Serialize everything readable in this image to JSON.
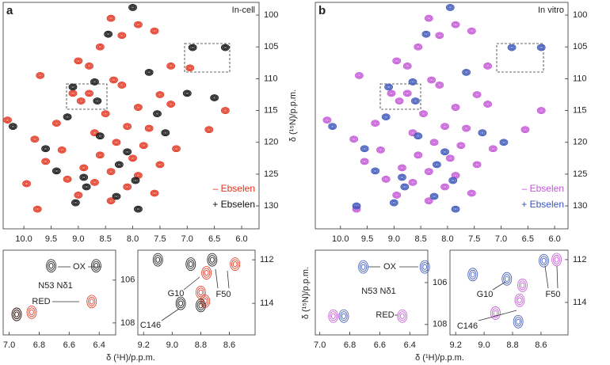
{
  "chart_data": [
    {
      "type": "scatter",
      "panel": "a",
      "title": "In-cell",
      "legend": "lower right",
      "xlim": [
        10.38,
        5.68
      ],
      "ylim": [
        98.0,
        133.6
      ],
      "xticks": [
        {
          "value": 10,
          "label": "10.0"
        },
        9.5,
        {
          "value": 9,
          "label": "9.0"
        },
        8.5,
        {
          "value": 8,
          "label": "8.0"
        },
        7.5,
        {
          "value": 7,
          "label": "7.0"
        },
        6.5,
        {
          "value": 6,
          "label": "6.0"
        }
      ],
      "yticks": [
        100,
        105,
        110,
        115,
        120,
        125,
        130
      ],
      "series": [
        {
          "name": "– Ebselen",
          "color": "#e2341f",
          "x": [
            8.4,
            7.9,
            7.6,
            8.2,
            8.6,
            9.0,
            8.8,
            7.3,
            9.7,
            8.35,
            8.2,
            6.95,
            9.1,
            8.8,
            8.95,
            7.5,
            7.3,
            7.9,
            8.5,
            9.4,
            10.3,
            8.1,
            7.7,
            8.7,
            9.8,
            8.3,
            7.8,
            7.2,
            9.3,
            8.6,
            8.0,
            7.5,
            9.6,
            8.9,
            8.4,
            7.9,
            9.2,
            8.7,
            8.1,
            7.6,
            9.0,
            8.4,
            9.75,
            6.3,
            6.6,
            9.95
          ],
          "y": [
            100.5,
            101.5,
            102.5,
            103.2,
            105.0,
            107.2,
            108.0,
            108.0,
            109.5,
            110.2,
            111.0,
            108.3,
            112.3,
            112.3,
            113.5,
            112.5,
            114.0,
            114.5,
            115.5,
            117.0,
            116.5,
            117.5,
            117.8,
            118.5,
            119.5,
            120.0,
            120.5,
            121.0,
            121.2,
            122.0,
            122.5,
            123.5,
            123.0,
            124.0,
            124.6,
            125.2,
            125.8,
            126.3,
            127.0,
            128.0,
            128.3,
            129.2,
            130.5,
            115.0,
            118.0,
            126.5
          ]
        },
        {
          "name": "+ Ebselen",
          "color": "#111111",
          "x": [
            6.9,
            6.3,
            9.1,
            8.65,
            7.0,
            8.9,
            8.25,
            9.4,
            7.9,
            8.0,
            8.45,
            7.7,
            9.2,
            8.6,
            7.4,
            8.1,
            9.6,
            8.85,
            7.95,
            8.3,
            9.05,
            7.55,
            8.7,
            10.2,
            6.5
          ],
          "y": [
            105.1,
            105.1,
            111.3,
            113.5,
            112.3,
            125.5,
            123.5,
            124.5,
            130.5,
            98.8,
            103.0,
            109.0,
            116.0,
            119.0,
            118.5,
            121.5,
            121.0,
            127.0,
            126.0,
            128.5,
            129.5,
            115.5,
            110.5,
            117.5,
            113.0
          ]
        }
      ]
    },
    {
      "type": "scatter",
      "panel": "b",
      "title": "In vitro",
      "legend": "lower right",
      "ylabel": "δ (¹⁵N)/p.p.m.",
      "xlim": [
        10.47,
        5.75
      ],
      "ylim": [
        98.0,
        133.6
      ],
      "xticks": [
        {
          "value": 10,
          "label": "10.0"
        },
        9.5,
        {
          "value": 9,
          "label": "9.0"
        },
        8.5,
        {
          "value": 8,
          "label": "8.0"
        },
        7.5,
        {
          "value": 7,
          "label": "7.0"
        },
        6.5,
        {
          "value": 6,
          "label": "6.0"
        }
      ],
      "yticks": [
        100,
        105,
        110,
        115,
        120,
        125,
        130
      ],
      "series": [
        {
          "name": "– Ebselen",
          "color": "#c356d6",
          "x": [
            8.35,
            7.85,
            7.55,
            8.15,
            8.55,
            8.95,
            8.75,
            7.25,
            9.65,
            8.3,
            8.15,
            9.05,
            8.75,
            8.9,
            7.45,
            7.25,
            7.85,
            8.45,
            9.35,
            10.25,
            8.05,
            7.65,
            8.65,
            9.75,
            8.25,
            7.75,
            7.15,
            9.25,
            8.55,
            7.95,
            7.45,
            9.55,
            8.85,
            8.35,
            7.85,
            9.15,
            8.65,
            8.05,
            7.55,
            8.95,
            8.35,
            9.7,
            6.25,
            6.55
          ],
          "y": [
            100.5,
            101.5,
            102.5,
            103.2,
            105.0,
            107.2,
            108.0,
            108.0,
            109.5,
            110.2,
            111.0,
            112.3,
            112.3,
            113.5,
            112.5,
            114.0,
            114.5,
            115.5,
            117.0,
            116.5,
            117.5,
            117.8,
            118.5,
            119.5,
            120.0,
            120.5,
            121.0,
            121.2,
            122.0,
            122.5,
            123.5,
            123.0,
            124.0,
            124.6,
            125.2,
            125.8,
            126.3,
            127.0,
            128.0,
            128.3,
            129.2,
            130.5,
            115.0,
            118.0
          ]
        },
        {
          "name": "+ Ebselen",
          "color": "#3b55b8",
          "x": [
            6.8,
            6.25,
            9.1,
            8.6,
            8.85,
            8.2,
            9.35,
            7.85,
            7.95,
            8.4,
            7.65,
            9.15,
            8.55,
            7.35,
            8.05,
            9.55,
            8.8,
            7.9,
            8.25,
            9.0,
            8.65,
            10.15,
            9.7,
            6.95
          ],
          "y": [
            105.1,
            105.1,
            111.3,
            113.5,
            125.5,
            123.5,
            124.5,
            130.5,
            98.8,
            103.0,
            109.0,
            116.0,
            119.0,
            118.5,
            121.5,
            121.0,
            127.0,
            126.0,
            128.5,
            129.5,
            110.5,
            117.5,
            130.0,
            120.0
          ]
        }
      ]
    },
    {
      "type": "scatter",
      "xlabel": "δ (¹H)/p.p.m.",
      "annotations": [
        "OX",
        "RED",
        "N53 Nδ1"
      ],
      "xlim": [
        7.04,
        6.29
      ],
      "ylim": [
        104.6,
        108.56
      ],
      "xticks": [
        {
          "value": 7,
          "label": "7.0"
        },
        6.8,
        6.6,
        6.4
      ],
      "yticks": [
        106,
        108
      ],
      "series": [
        {
          "color": "#e2341f",
          "x": [
            6.95,
            6.85,
            6.45
          ],
          "y": [
            107.6,
            107.5,
            107.0
          ]
        },
        {
          "color": "#111111",
          "x": [
            6.72,
            6.42,
            6.95
          ],
          "y": [
            105.33,
            105.33,
            107.6
          ]
        }
      ]
    },
    {
      "type": "scatter",
      "annotations": [
        "G10",
        "F50",
        "C146"
      ],
      "xlim": [
        9.24,
        8.42
      ],
      "ylim": [
        111.56,
        115.45
      ],
      "xticks": [
        9.2,
        {
          "value": 9,
          "label": "9.0"
        },
        8.8,
        8.6
      ],
      "yticks": [
        112,
        114
      ],
      "series": [
        {
          "color": "#e2341f",
          "x": [
            8.76,
            8.56,
            8.77,
            8.8
          ],
          "y": [
            112.6,
            112.2,
            113.9,
            113.5
          ]
        },
        {
          "color": "#111111",
          "x": [
            9.1,
            8.87,
            8.72,
            8.94,
            8.8
          ],
          "y": [
            112.0,
            112.2,
            112.0,
            114.0,
            114.1
          ]
        }
      ]
    },
    {
      "type": "scatter",
      "xlabel": "δ (¹H)/p.p.m.",
      "ylabel": "δ (¹⁵N)/p.p.m.",
      "annotations": [
        "OX",
        "RED",
        "N53 Nδ1"
      ],
      "xlim": [
        7.03,
        6.28
      ],
      "ylim": [
        104.45,
        108.5
      ],
      "xticks": [
        {
          "value": 7,
          "label": "7.0"
        },
        6.8,
        6.6,
        6.4
      ],
      "yticks": [
        106,
        108
      ],
      "series": [
        {
          "color": "#c356d6",
          "x": [
            6.91,
            6.45
          ],
          "y": [
            107.6,
            107.6
          ]
        },
        {
          "color": "#3b55b8",
          "x": [
            6.71,
            6.3,
            6.84
          ],
          "y": [
            105.25,
            105.25,
            107.6
          ]
        }
      ]
    },
    {
      "type": "scatter",
      "annotations": [
        "G10",
        "F50",
        "C146"
      ],
      "xlim": [
        9.24,
        8.41
      ],
      "ylim": [
        111.56,
        115.52
      ],
      "xticks": [
        9.2,
        {
          "value": 9,
          "label": "9.0"
        },
        8.8,
        8.6
      ],
      "yticks": [
        112,
        114
      ],
      "series": [
        {
          "color": "#c356d6",
          "x": [
            8.73,
            8.49,
            8.92,
            8.75
          ],
          "y": [
            113.2,
            112.0,
            114.5,
            113.9
          ]
        },
        {
          "color": "#3b55b8",
          "x": [
            9.08,
            8.84,
            8.58,
            8.76
          ],
          "y": [
            112.7,
            112.9,
            112.05,
            114.9
          ]
        }
      ]
    }
  ]
}
